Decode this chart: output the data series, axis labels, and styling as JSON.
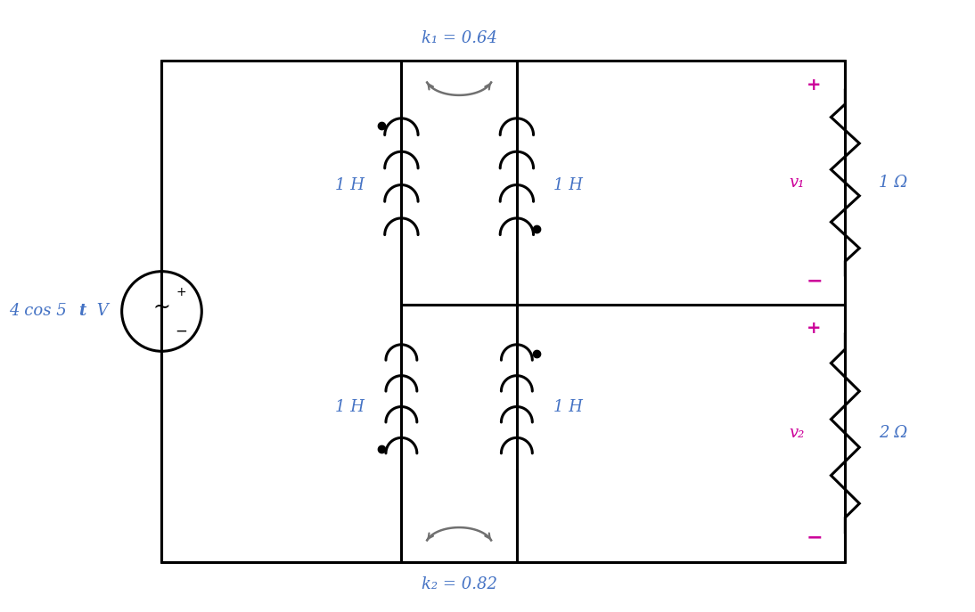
{
  "bg_color": "#ffffff",
  "line_color": "#000000",
  "blue_color": "#4472c4",
  "magenta_color": "#cc0099",
  "gray_color": "#707070",
  "source_label_cos": "4 cos 5",
  "source_label_t": "t",
  "source_label_V": " V",
  "k1_label": "k₁ = 0.64",
  "k2_label": "k₂ = 0.82",
  "L1_top_label": "1 H",
  "L2_top_label": "1 H",
  "L1_bot_label": "1 H",
  "L2_bot_label": "1 H",
  "R1_label": "1 Ω",
  "R2_label": "2 Ω",
  "v1_label": "v₁",
  "v2_label": "v₂",
  "figw": 10.94,
  "figh": 6.87,
  "dpi": 100
}
